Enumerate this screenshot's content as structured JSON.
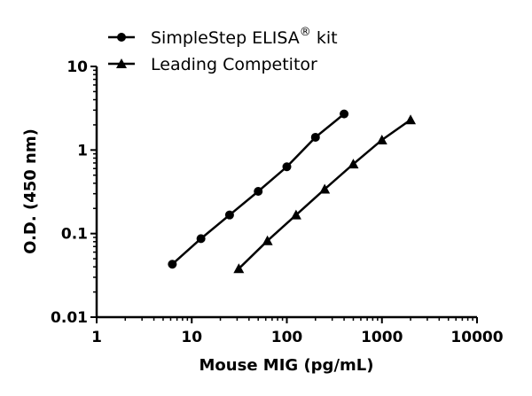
{
  "chart_data": {
    "type": "line",
    "xlabel": "Mouse MIG (pg/mL)",
    "ylabel": "O.D. (450 nm)",
    "xscale": "log",
    "yscale": "log",
    "xlim": [
      1,
      10000
    ],
    "ylim": [
      0.01,
      10
    ],
    "xticks": [
      "1",
      "10",
      "100",
      "1000",
      "10000"
    ],
    "yticks": [
      "0.01",
      "0.1",
      "1",
      "10"
    ],
    "grid": false,
    "legend_position": "top-left",
    "series": [
      {
        "name": "SimpleStep ELISA",
        "name_sup": "®",
        "name_suffix": " kit",
        "marker": "circle",
        "color": "#000000",
        "x": [
          6.25,
          12.5,
          25,
          50,
          100,
          200,
          400
        ],
        "y": [
          0.043,
          0.087,
          0.167,
          0.32,
          0.63,
          1.42,
          2.7
        ]
      },
      {
        "name": "Leading Competitor",
        "marker": "triangle",
        "color": "#000000",
        "x": [
          31.25,
          62.5,
          125,
          250,
          500,
          1000,
          2000
        ],
        "y": [
          0.038,
          0.082,
          0.167,
          0.34,
          0.68,
          1.32,
          2.3
        ]
      }
    ]
  }
}
